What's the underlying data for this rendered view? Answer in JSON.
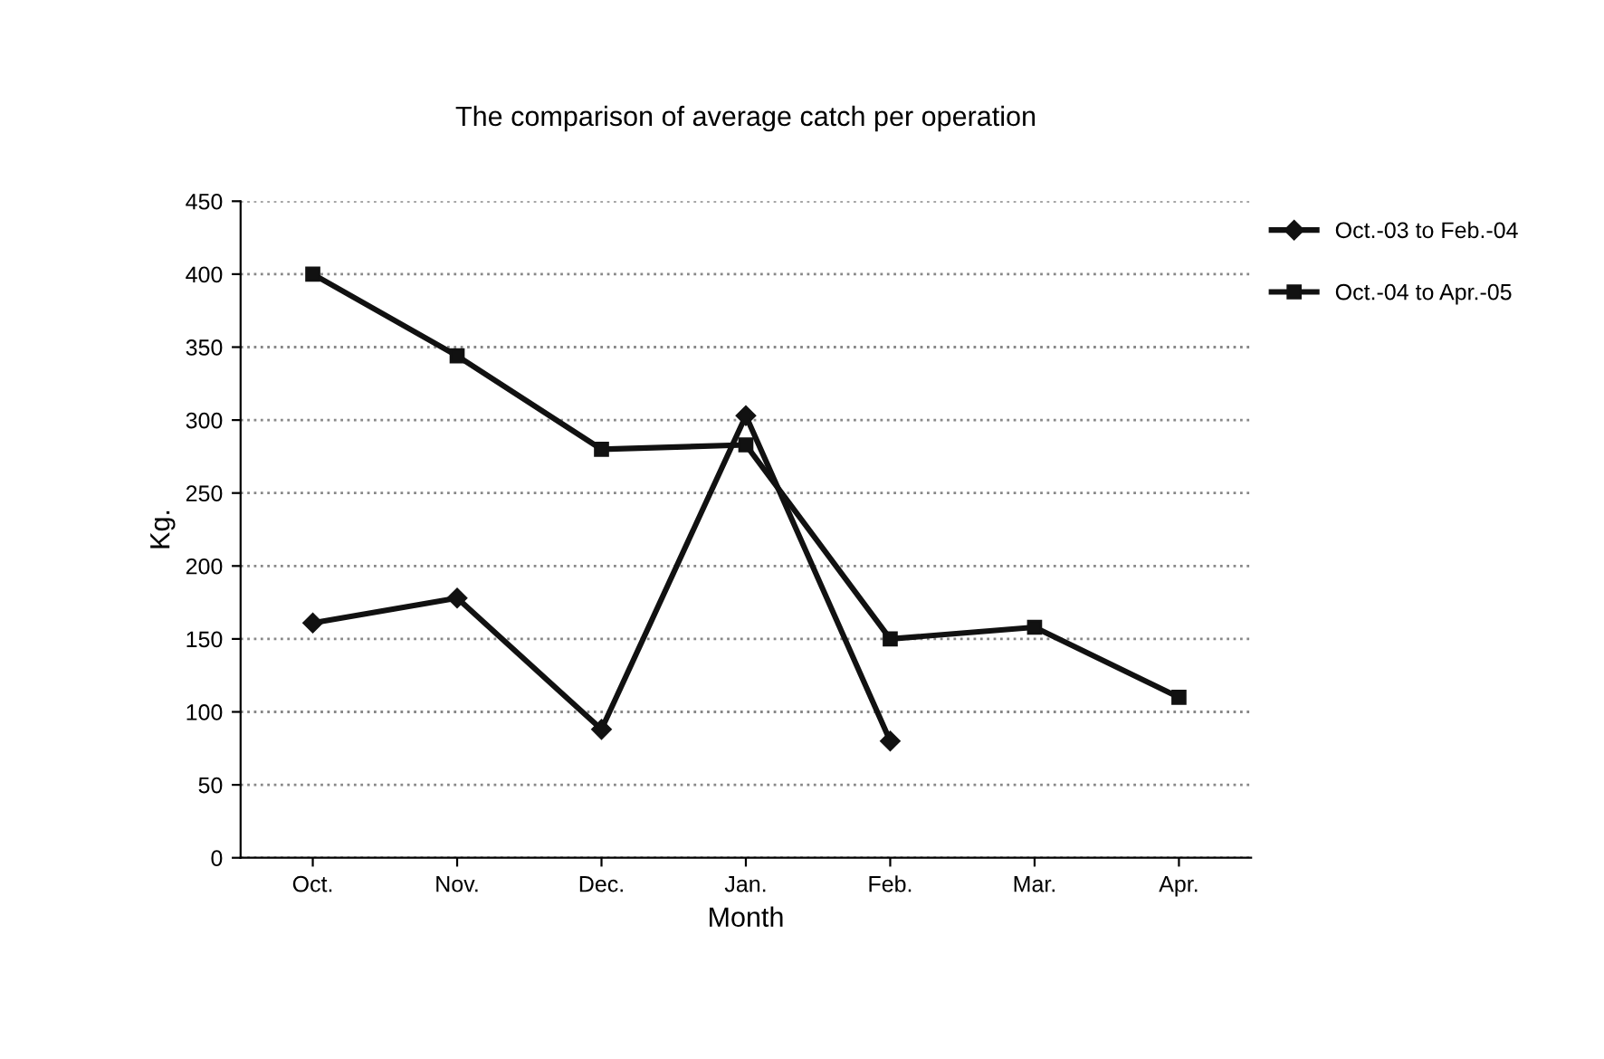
{
  "chart_data": {
    "type": "line",
    "title": "The comparison of average catch per operation",
    "xlabel": "Month",
    "ylabel": "Kg.",
    "categories": [
      "Oct.",
      "Nov.",
      "Dec.",
      "Jan.",
      "Feb.",
      "Mar.",
      "Apr."
    ],
    "series": [
      {
        "name": "Oct.-03 to Feb.-04",
        "color": "#111111",
        "marker": "diamond",
        "values": [
          161,
          178,
          88,
          303,
          80,
          null,
          null
        ]
      },
      {
        "name": "Oct.-04 to Apr.-05",
        "color": "#111111",
        "marker": "square",
        "values": [
          400,
          344,
          280,
          283,
          150,
          158,
          110
        ]
      }
    ],
    "ylim": [
      0,
      450
    ],
    "yticks": [
      0,
      50,
      100,
      150,
      200,
      250,
      300,
      350,
      400,
      450
    ],
    "grid": "y",
    "legend": "top right",
    "line_style": "solid"
  }
}
